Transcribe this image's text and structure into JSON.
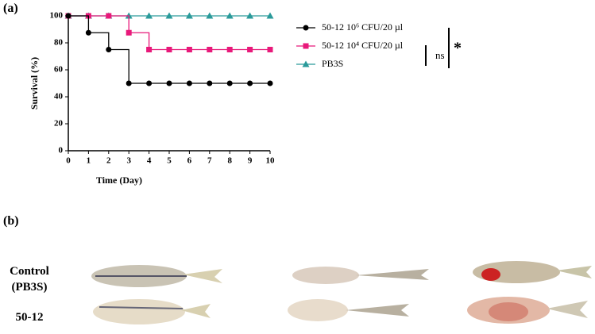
{
  "panel_labels": [
    "(a)",
    "(b)"
  ],
  "photo_rows": [
    "Control (PB3S)",
    "50-12"
  ],
  "chart_data": {
    "type": "step",
    "xlabel": "Time (Day)",
    "ylabel": "Survival (%)",
    "x": [
      0,
      1,
      2,
      3,
      4,
      5,
      6,
      7,
      8,
      9,
      10
    ],
    "xlim": [
      0,
      10
    ],
    "xticks": [
      0,
      1,
      2,
      3,
      4,
      5,
      6,
      7,
      8,
      9,
      10
    ],
    "ylim": [
      0,
      100
    ],
    "yticks": [
      0,
      20,
      40,
      60,
      80,
      100
    ],
    "series": [
      {
        "name": "50-12 10⁶ CFU/20 µl",
        "color": "#000000",
        "marker": "circle",
        "values": [
          100,
          87.5,
          75,
          50,
          50,
          50,
          50,
          50,
          50,
          50,
          50
        ]
      },
      {
        "name": "50-12 10⁴ CFU/20 µl",
        "color": "#e8197a",
        "marker": "square",
        "values": [
          100,
          100,
          100,
          87.5,
          75,
          75,
          75,
          75,
          75,
          75,
          75
        ]
      },
      {
        "name": "PB3S",
        "color": "#2a9a9a",
        "marker": "triangle",
        "values": [
          100,
          100,
          100,
          100,
          100,
          100,
          100,
          100,
          100,
          100,
          100
        ]
      }
    ],
    "annotations": [
      "ns",
      "*"
    ]
  }
}
